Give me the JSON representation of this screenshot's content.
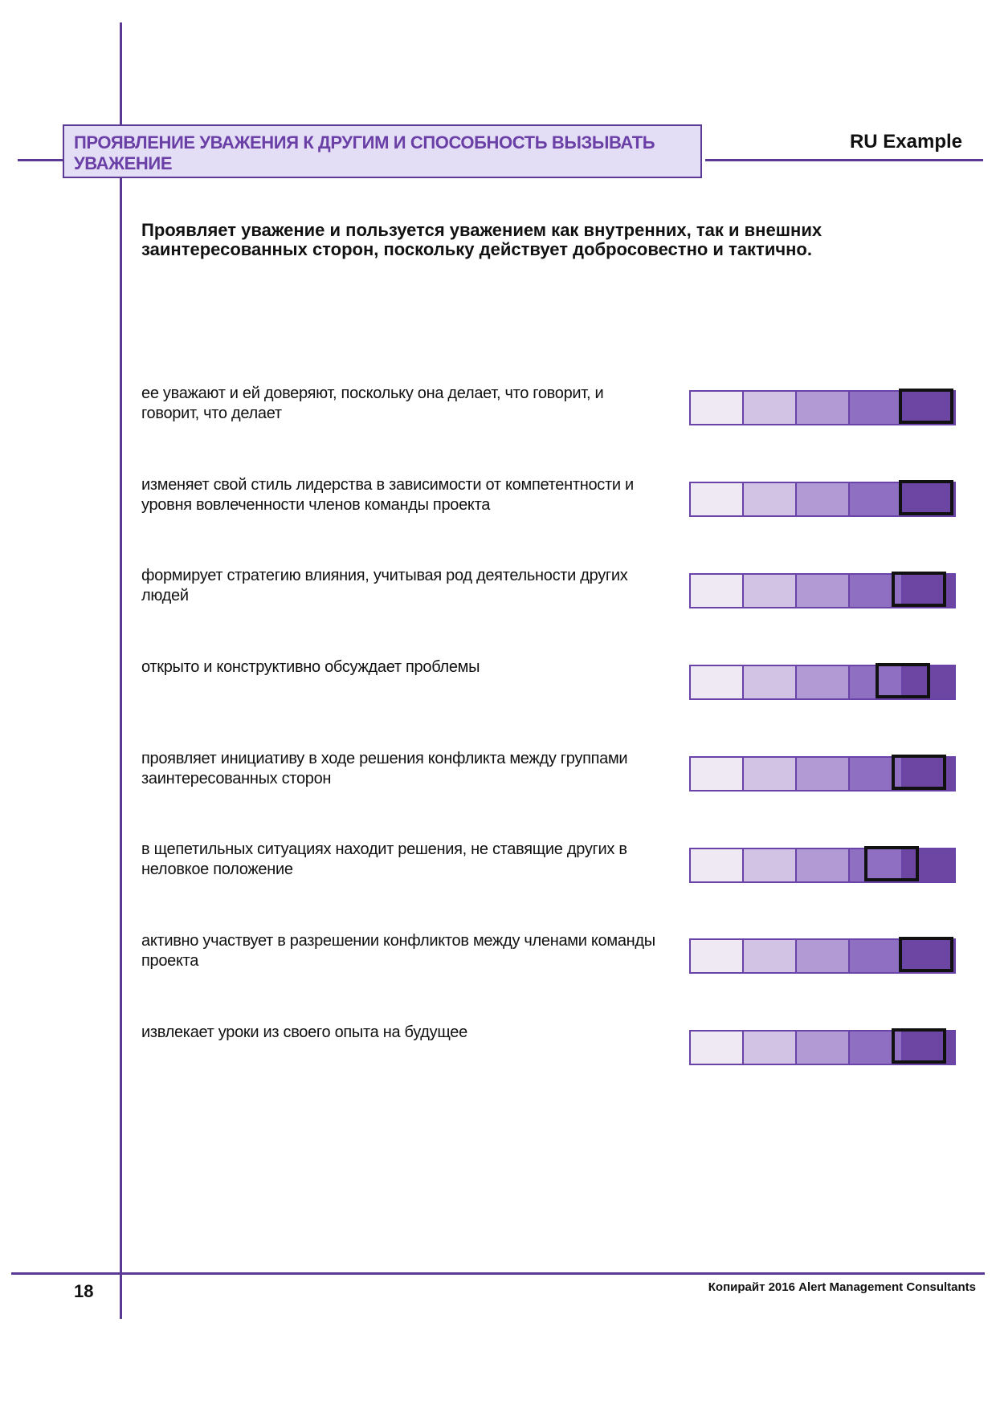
{
  "header": {
    "title": "ПРОЯВЛЕНИЕ УВАЖЕНИЯ К ДРУГИМ И СПОСОБНОСТЬ ВЫЗЫВАТЬ УВАЖЕНИЕ",
    "label": "RU Example"
  },
  "intro": "Проявляет уважение и пользуется уважением как внутренних, так и внешних заинтересованных сторон, поскольку действует добросовестно и тактично.",
  "scale_colors": [
    "#efe9f4",
    "#d2c2e3",
    "#b29ad4",
    "#8f6fc2",
    "#6d45a3"
  ],
  "items": [
    {
      "text": "ее уважают и ей доверяют, поскольку она делает, что говорит, и говорит, что делает",
      "rating": 4.95
    },
    {
      "text": "изменяет свой стиль лидерства в зависимости от компетентности и уровня вовлеченности членов команды проекта",
      "rating": 4.95
    },
    {
      "text": "формирует стратегию влияния, учитывая род деятельности других людей",
      "rating": 4.8
    },
    {
      "text": "открыто и конструктивно обсуждает проблемы",
      "rating": 4.5
    },
    {
      "text": "проявляет инициативу в ходе решения конфликта между группами заинтересованных сторон",
      "rating": 4.8
    },
    {
      "text": "в щепетильных ситуациях находит решения, не ставящие других в неловкое положение",
      "rating": 4.3
    },
    {
      "text": "активно участвует в разрешении конфликтов между членами команды проекта",
      "rating": 4.95
    },
    {
      "text": "извлекает уроки из своего опыта на будущее",
      "rating": 4.8
    }
  ],
  "footer": {
    "page_number": "18",
    "copyright": "Копирайт 2016  Alert Management Consultants"
  }
}
